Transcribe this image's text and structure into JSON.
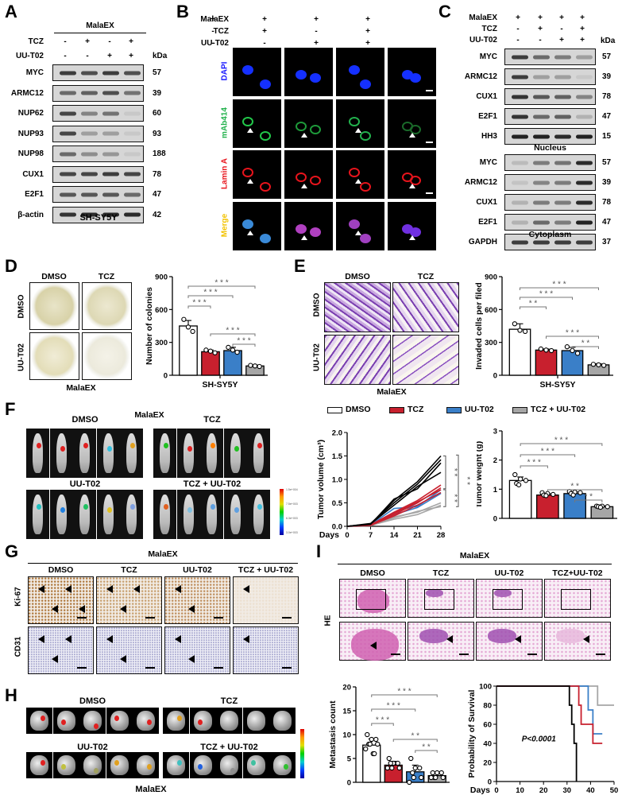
{
  "panels": {
    "A": {
      "letter": "A",
      "group_label": "MalaEX",
      "rows": [
        {
          "label": "TCZ",
          "values": [
            "-",
            "+",
            "-",
            "+"
          ]
        },
        {
          "label": "UU-T02",
          "values": [
            "-",
            "-",
            "+",
            "+"
          ]
        }
      ],
      "kda_label": "kDa",
      "blots": [
        {
          "protein": "MYC",
          "kda": "57",
          "intensity": [
            0.85,
            0.75,
            0.85,
            0.75
          ]
        },
        {
          "protein": "ARMC12",
          "kda": "39",
          "intensity": [
            0.6,
            0.65,
            0.75,
            0.55
          ]
        },
        {
          "protein": "NUP62",
          "kda": "60",
          "intensity": [
            0.8,
            0.45,
            0.55,
            0.08
          ]
        },
        {
          "protein": "NUP93",
          "kda": "93",
          "intensity": [
            0.8,
            0.3,
            0.3,
            0.08
          ]
        },
        {
          "protein": "NUP98",
          "kda": "188",
          "intensity": [
            0.6,
            0.4,
            0.35,
            0.08
          ]
        },
        {
          "protein": "CUX1",
          "kda": "78",
          "intensity": [
            0.8,
            0.8,
            0.85,
            0.8
          ]
        },
        {
          "protein": "E2F1",
          "kda": "47",
          "intensity": [
            0.7,
            0.7,
            0.7,
            0.6
          ]
        },
        {
          "protein": "β-actin",
          "kda": "42",
          "intensity": [
            0.9,
            0.95,
            0.95,
            0.95
          ]
        }
      ],
      "cell_line": "SH-SY5Y"
    },
    "B": {
      "letter": "B",
      "conditions": [
        {
          "label": "MalaEX",
          "values": [
            "+",
            "+",
            "+",
            "+"
          ]
        },
        {
          "label": "TCZ",
          "values": [
            "-",
            "+",
            "-",
            "+"
          ]
        },
        {
          "label": "UU-T02",
          "values": [
            "-",
            "-",
            "+",
            "+"
          ]
        }
      ],
      "channels": [
        {
          "label": "DAPI",
          "color": "#1a1aff"
        },
        {
          "label": "mAb414",
          "color": "#22b14c"
        },
        {
          "label": "Lamin A",
          "color": "#e8141c"
        },
        {
          "label": "Merge",
          "color": "#f2c200"
        }
      ]
    },
    "C": {
      "letter": "C",
      "conditions": [
        {
          "label": "MalaEX",
          "values": [
            "+",
            "+",
            "+",
            "+"
          ]
        },
        {
          "label": "TCZ",
          "values": [
            "-",
            "+",
            "-",
            "+"
          ]
        },
        {
          "label": "UU-T02",
          "values": [
            "-",
            "-",
            "+",
            "+"
          ]
        }
      ],
      "kda_label": "kDa",
      "nucleus": {
        "title": "Nucleus",
        "blots": [
          {
            "protein": "MYC",
            "kda": "57",
            "intensity": [
              0.85,
              0.6,
              0.5,
              0.3
            ]
          },
          {
            "protein": "ARMC12",
            "kda": "39",
            "intensity": [
              0.85,
              0.3,
              0.3,
              0.08
            ]
          },
          {
            "protein": "CUX1",
            "kda": "78",
            "intensity": [
              0.9,
              0.7,
              0.65,
              0.45
            ]
          },
          {
            "protein": "E2F1",
            "kda": "47",
            "intensity": [
              0.9,
              0.6,
              0.65,
              0.2
            ]
          },
          {
            "protein": "HH3",
            "kda": "15",
            "intensity": [
              1,
              1,
              0.95,
              1
            ]
          }
        ]
      },
      "cytoplasm": {
        "title": "Cytoplasm",
        "blots": [
          {
            "protein": "MYC",
            "kda": "57",
            "intensity": [
              0.15,
              0.5,
              0.55,
              0.95
            ]
          },
          {
            "protein": "ARMC12",
            "kda": "39",
            "intensity": [
              0.1,
              0.45,
              0.5,
              0.95
            ]
          },
          {
            "protein": "CUX1",
            "kda": "78",
            "intensity": [
              0.2,
              0.5,
              0.5,
              0.95
            ]
          },
          {
            "protein": "E2F1",
            "kda": "47",
            "intensity": [
              0.2,
              0.6,
              0.5,
              1
            ]
          },
          {
            "protein": "GAPDH",
            "kda": "37",
            "intensity": [
              0.85,
              0.85,
              0.85,
              0.85
            ]
          }
        ]
      }
    },
    "D": {
      "letter": "D",
      "col_labels": [
        "DMSO",
        "TCZ"
      ],
      "row_labels": [
        "DMSO",
        "UU-T02"
      ],
      "bottom_label": "MalaEX"
    },
    "E": {
      "letter": "E",
      "col_labels": [
        "DMSO",
        "TCZ"
      ],
      "row_labels": [
        "DMSO",
        "UU-T02"
      ],
      "bottom_label": "MalaEX"
    },
    "F": {
      "letter": "F",
      "title": "MalaEX",
      "groups": [
        "DMSO",
        "TCZ",
        "UU-T02",
        "TCZ + UU-T02"
      ],
      "colorbar_ticks": [
        "1.5e+004",
        "7.5e+003",
        "6.3e+003",
        "3.0e+003"
      ]
    },
    "G": {
      "letter": "G",
      "title": "MalaEX",
      "cols": [
        "DMSO",
        "TCZ",
        "UU-T02",
        "TCZ + UU-T02"
      ],
      "rows": [
        "Ki-67",
        "CD31"
      ]
    },
    "H": {
      "letter": "H",
      "groups": [
        "DMSO",
        "TCZ",
        "UU-T02",
        "TCZ + UU-T02"
      ],
      "bottom_label": "MalaEX"
    },
    "I": {
      "letter": "I",
      "title": "MalaEX",
      "cols": [
        "DMSO",
        "TCZ",
        "UU-T02",
        "TCZ+UU-T02"
      ],
      "row_label": "HE"
    }
  },
  "legend": {
    "items": [
      {
        "label": "DMSO",
        "color": "#ffffff"
      },
      {
        "label": "TCZ",
        "color": "#c8202e"
      },
      {
        "label": "UU-T02",
        "color": "#3a7fc8"
      },
      {
        "label": "TCZ + UU-T02",
        "color": "#a6a6a6"
      }
    ]
  },
  "colors": {
    "dmso": "#ffffff",
    "tcz": "#c8202e",
    "uut02": "#3a7fc8",
    "combo": "#a6a6a6",
    "sig_line": "#777777"
  },
  "chart_data": [
    {
      "id": "D-colonies",
      "type": "bar",
      "title": "",
      "xlabel": "SH-SY5Y",
      "ylabel": "Number of colonies",
      "categories": [
        "DMSO",
        "TCZ",
        "UU-T02",
        "TCZ + UU-T02"
      ],
      "values": [
        450,
        215,
        225,
        85
      ],
      "errors": [
        50,
        15,
        30,
        8
      ],
      "points": [
        [
          510,
          440,
          400
        ],
        [
          230,
          220,
          205
        ],
        [
          255,
          230,
          210
        ],
        [
          90,
          85,
          80
        ]
      ],
      "ylim": [
        0,
        900
      ],
      "yticks": [
        0,
        300,
        600,
        900
      ],
      "significance": [
        {
          "from": 0,
          "to": 3,
          "label": "***"
        },
        {
          "from": 0,
          "to": 2,
          "label": "***"
        },
        {
          "from": 0,
          "to": 1,
          "label": "***"
        },
        {
          "from": 1,
          "to": 3,
          "label": "***"
        },
        {
          "from": 2,
          "to": 3,
          "label": "***"
        }
      ]
    },
    {
      "id": "E-invasion",
      "type": "bar",
      "title": "",
      "xlabel": "SH-SY5Y",
      "ylabel": "Invaded cells per filed",
      "categories": [
        "DMSO",
        "TCZ",
        "UU-T02",
        "TCZ + UU-T02"
      ],
      "values": [
        420,
        230,
        225,
        95
      ],
      "errors": [
        50,
        10,
        30,
        10
      ],
      "points": [
        [
          470,
          410,
          400
        ],
        [
          240,
          230,
          225
        ],
        [
          260,
          225,
          200
        ],
        [
          100,
          95,
          90
        ]
      ],
      "ylim": [
        0,
        900
      ],
      "yticks": [
        0,
        300,
        600,
        900
      ],
      "significance": [
        {
          "from": 0,
          "to": 3,
          "label": "***"
        },
        {
          "from": 0,
          "to": 2,
          "label": "***"
        },
        {
          "from": 0,
          "to": 1,
          "label": "**"
        },
        {
          "from": 1,
          "to": 3,
          "label": "***"
        },
        {
          "from": 2,
          "to": 3,
          "label": "**"
        }
      ]
    },
    {
      "id": "F-tumor-volume",
      "type": "line",
      "title": "",
      "xlabel": "Days",
      "ylabel": "Tumor volume (cm³)",
      "x": [
        0,
        7,
        14,
        21,
        28
      ],
      "xticks": [
        0,
        7,
        14,
        21,
        28
      ],
      "ylim": [
        0,
        2.0
      ],
      "yticks": [
        "0.0",
        "0.5",
        "1.0",
        "1.5",
        "2.0"
      ],
      "series": [
        {
          "name": "DMSO",
          "color": "#000000",
          "lines": [
            [
              0,
              0.05,
              0.55,
              0.95,
              1.5
            ],
            [
              0,
              0.06,
              0.5,
              0.9,
              1.42
            ],
            [
              0,
              0.04,
              0.58,
              0.8,
              1.35
            ],
            [
              0,
              0.05,
              0.45,
              0.85,
              1.15
            ]
          ]
        },
        {
          "name": "TCZ",
          "color": "#c8202e",
          "lines": [
            [
              0,
              0.03,
              0.3,
              0.55,
              0.88
            ],
            [
              0,
              0.02,
              0.25,
              0.5,
              0.82
            ],
            [
              0,
              0.03,
              0.28,
              0.52,
              0.78
            ],
            [
              0,
              0.02,
              0.22,
              0.45,
              0.72
            ]
          ]
        },
        {
          "name": "UU-T02",
          "color": "#3a7fc8",
          "lines": [
            [
              0,
              0.03,
              0.38,
              0.42,
              0.78
            ],
            [
              0,
              0.02,
              0.3,
              0.45,
              0.72
            ],
            [
              0,
              0.03,
              0.25,
              0.4,
              0.7
            ]
          ]
        },
        {
          "name": "TCZ + UU-T02",
          "color": "#a6a6a6",
          "lines": [
            [
              0,
              0.02,
              0.2,
              0.3,
              0.5
            ],
            [
              0,
              0.02,
              0.15,
              0.25,
              0.45
            ],
            [
              0,
              0.01,
              0.18,
              0.32,
              0.42
            ]
          ]
        }
      ],
      "significance": [
        {
          "label": "**",
          "between": [
            "DMSO",
            "TCZ"
          ]
        },
        {
          "label": "**",
          "between": [
            "TCZ",
            "TCZ + UU-T02"
          ]
        },
        {
          "label": "**",
          "between": [
            "DMSO",
            "TCZ + UU-T02"
          ]
        }
      ]
    },
    {
      "id": "F-tumor-weight",
      "type": "bar",
      "title": "",
      "xlabel": "",
      "ylabel": "Tumor weight (g)",
      "categories": [
        "DMSO",
        "TCZ",
        "UU-T02",
        "TCZ + UU-T02"
      ],
      "values": [
        1.3,
        0.8,
        0.85,
        0.4
      ],
      "errors": [
        0.12,
        0.05,
        0.06,
        0.03
      ],
      "points": [
        [
          1.5,
          1.35,
          1.3,
          1.2,
          1.15
        ],
        [
          0.88,
          0.85,
          0.82,
          0.8,
          0.78
        ],
        [
          0.92,
          0.9,
          0.88,
          0.85,
          0.8
        ],
        [
          0.42,
          0.42,
          0.4,
          0.4,
          0.38
        ]
      ],
      "ylim": [
        0,
        3
      ],
      "yticks": [
        0,
        1,
        2,
        3
      ],
      "significance": [
        {
          "from": 0,
          "to": 3,
          "label": "***"
        },
        {
          "from": 0,
          "to": 2,
          "label": "***"
        },
        {
          "from": 0,
          "to": 1,
          "label": "***"
        },
        {
          "from": 1,
          "to": 3,
          "label": "**"
        },
        {
          "from": 2,
          "to": 3,
          "label": "**"
        }
      ]
    },
    {
      "id": "I-metastasis",
      "type": "bar",
      "title": "",
      "xlabel": "",
      "ylabel": "Metastasis count",
      "categories": [
        "DMSO",
        "TCZ",
        "UU-T02",
        "TCZ + UU-T02"
      ],
      "values": [
        7.8,
        3.6,
        2.2,
        1.4
      ],
      "errors": [
        1.3,
        0.8,
        1.4,
        0.5
      ],
      "points": [
        [
          10,
          9,
          9,
          8,
          8,
          8,
          7,
          6,
          6
        ],
        [
          5,
          4,
          4,
          4,
          3,
          3,
          3
        ],
        [
          5,
          3,
          3,
          2,
          1,
          1,
          0
        ],
        [
          2,
          2,
          2,
          1,
          1,
          1,
          1
        ]
      ],
      "ylim": [
        0,
        20
      ],
      "yticks": [
        0,
        5,
        10,
        15,
        20
      ],
      "significance": [
        {
          "from": 0,
          "to": 3,
          "label": "***"
        },
        {
          "from": 0,
          "to": 2,
          "label": "***"
        },
        {
          "from": 0,
          "to": 1,
          "label": "***"
        },
        {
          "from": 1,
          "to": 3,
          "label": "**"
        },
        {
          "from": 2,
          "to": 3,
          "label": "**"
        }
      ]
    },
    {
      "id": "I-survival",
      "type": "line",
      "title": "",
      "xlabel": "Days",
      "ylabel": "Probability of Survival",
      "xlim": [
        0,
        50
      ],
      "xticks": [
        0,
        10,
        20,
        30,
        40,
        50
      ],
      "ylim": [
        0,
        100
      ],
      "yticks": [
        0,
        20,
        40,
        60,
        80,
        100
      ],
      "annotation": "P<0.0001",
      "series": [
        {
          "name": "DMSO",
          "color": "#000000",
          "steps": [
            [
              0,
              100
            ],
            [
              31,
              100
            ],
            [
              31,
              80
            ],
            [
              32,
              80
            ],
            [
              32,
              60
            ],
            [
              33,
              60
            ],
            [
              33,
              40
            ],
            [
              34,
              40
            ],
            [
              34,
              0
            ]
          ]
        },
        {
          "name": "TCZ",
          "color": "#c8202e",
          "steps": [
            [
              0,
              100
            ],
            [
              35,
              100
            ],
            [
              35,
              80
            ],
            [
              36,
              80
            ],
            [
              36,
              60
            ],
            [
              41,
              60
            ],
            [
              41,
              40
            ],
            [
              45,
              40
            ]
          ]
        },
        {
          "name": "UU-T02",
          "color": "#3a7fc8",
          "steps": [
            [
              0,
              100
            ],
            [
              39,
              100
            ],
            [
              39,
              75
            ],
            [
              41,
              75
            ],
            [
              41,
              50
            ],
            [
              45,
              50
            ]
          ]
        },
        {
          "name": "TCZ + UU-T02",
          "color": "#a6a6a6",
          "steps": [
            [
              0,
              100
            ],
            [
              43,
              100
            ],
            [
              43,
              80
            ],
            [
              50,
              80
            ]
          ]
        }
      ]
    }
  ]
}
